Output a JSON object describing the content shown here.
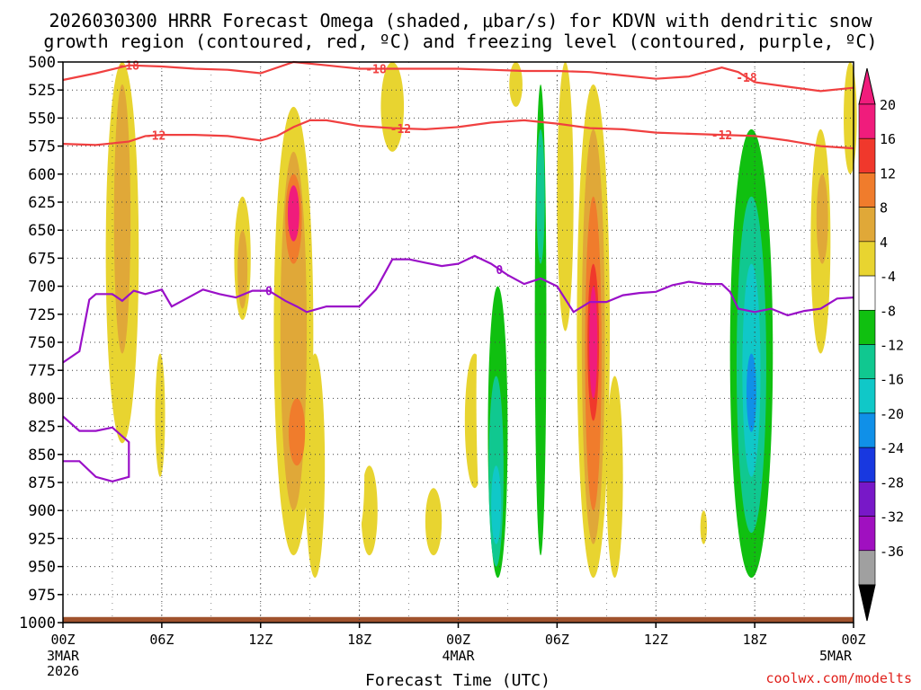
{
  "chart_data": {
    "type": "time-height contour",
    "title_line1": "2026030300 HRRR Forecast Omega (shaded, μbar/s) for KDVN with dendritic snow",
    "title_line2": "growth region (contoured, red, ºC) and freezing level (contoured, purple, ºC)",
    "xlabel": "Forecast Time (UTC)",
    "credit": "coolwx.com/modelts",
    "x_range_hours": [
      0,
      48
    ],
    "x_ticks": [
      {
        "hour": 0,
        "label": "00Z",
        "sub1": "3MAR",
        "sub2": "2026"
      },
      {
        "hour": 6,
        "label": "06Z"
      },
      {
        "hour": 12,
        "label": "12Z"
      },
      {
        "hour": 18,
        "label": "18Z"
      },
      {
        "hour": 24,
        "label": "00Z",
        "sub1": "4MAR"
      },
      {
        "hour": 30,
        "label": "06Z"
      },
      {
        "hour": 36,
        "label": "12Z"
      },
      {
        "hour": 42,
        "label": "18Z"
      },
      {
        "hour": 48,
        "label": "00Z",
        "sub1": "5MAR"
      }
    ],
    "y_ticks_hpa": [
      500,
      525,
      550,
      575,
      600,
      625,
      650,
      675,
      700,
      725,
      750,
      775,
      800,
      825,
      850,
      875,
      900,
      925,
      950,
      975,
      1000
    ],
    "y_range_hpa": [
      500,
      1000
    ],
    "colorbar": {
      "labels": [
        "20",
        "16",
        "12",
        "8",
        "4",
        "-4",
        "-8",
        "-12",
        "-16",
        "-20",
        "-24",
        "-28",
        "-32",
        "-36"
      ],
      "bins": [
        {
          "label": "20",
          "color": "#f01c7c"
        },
        {
          "label": "16",
          "color": "#f0382c"
        },
        {
          "label": "12",
          "color": "#f07c2c"
        },
        {
          "label": "8",
          "color": "#e0a838"
        },
        {
          "label": "4",
          "color": "#e8d430"
        },
        {
          "label": "-4",
          "color": "#ffffff"
        },
        {
          "label": "-8",
          "color": "#10c010"
        },
        {
          "label": "-12",
          "color": "#10c890"
        },
        {
          "label": "-16",
          "color": "#10c8c8"
        },
        {
          "label": "-20",
          "color": "#1090e8"
        },
        {
          "label": "-24",
          "color": "#1838e0"
        },
        {
          "label": "-28",
          "color": "#7818c8"
        },
        {
          "label": "-32",
          "color": "#a010c0"
        },
        {
          "label": "-36",
          "color": "#a0a0a0"
        }
      ],
      "top_arrow_color": "#f01c7c",
      "bottom_arrow_color": "#000000"
    },
    "contours": [
      {
        "name": "minus18",
        "label": "-18",
        "color": "#f04040",
        "points": [
          [
            0,
            516
          ],
          [
            2,
            510
          ],
          [
            4,
            503
          ],
          [
            6,
            504
          ],
          [
            8,
            506
          ],
          [
            10,
            507
          ],
          [
            12,
            510
          ],
          [
            14,
            500
          ],
          [
            16,
            503
          ],
          [
            18,
            506
          ],
          [
            20,
            506
          ],
          [
            22,
            506
          ],
          [
            24,
            506
          ],
          [
            26,
            507
          ],
          [
            28,
            508
          ],
          [
            30,
            508
          ],
          [
            32,
            509
          ],
          [
            34,
            512
          ],
          [
            36,
            515
          ],
          [
            38,
            513
          ],
          [
            40,
            505
          ],
          [
            41,
            509
          ],
          [
            42,
            518
          ],
          [
            44,
            522
          ],
          [
            46,
            526
          ],
          [
            48,
            523
          ]
        ],
        "label_hours": [
          4,
          19,
          41.5
        ]
      },
      {
        "name": "minus12",
        "label": "-12",
        "color": "#f04040",
        "points": [
          [
            0,
            573
          ],
          [
            2,
            574
          ],
          [
            4,
            571
          ],
          [
            5,
            566
          ],
          [
            6,
            565
          ],
          [
            8,
            565
          ],
          [
            10,
            566
          ],
          [
            12,
            570
          ],
          [
            13,
            566
          ],
          [
            14,
            558
          ],
          [
            15,
            552
          ],
          [
            16,
            552
          ],
          [
            18,
            557
          ],
          [
            20,
            559
          ],
          [
            22,
            560
          ],
          [
            24,
            558
          ],
          [
            26,
            554
          ],
          [
            28,
            552
          ],
          [
            30,
            555
          ],
          [
            32,
            559
          ],
          [
            34,
            560
          ],
          [
            36,
            563
          ],
          [
            38,
            564
          ],
          [
            40,
            565
          ],
          [
            42,
            566
          ],
          [
            44,
            570
          ],
          [
            46,
            575
          ],
          [
            48,
            577
          ]
        ],
        "label_hours": [
          5.6,
          20.5,
          40
        ]
      },
      {
        "name": "freezing-level",
        "label": "0",
        "color": "#9a10c8",
        "points": [
          [
            0,
            768
          ],
          [
            1,
            758
          ],
          [
            1.6,
            712
          ],
          [
            2,
            707
          ],
          [
            3,
            707
          ],
          [
            3.6,
            713
          ],
          [
            4.3,
            704
          ],
          [
            5,
            707
          ],
          [
            6,
            703
          ],
          [
            6.6,
            718
          ],
          [
            7.5,
            711
          ],
          [
            8.5,
            703
          ],
          [
            9.5,
            707
          ],
          [
            10.5,
            710
          ],
          [
            11.5,
            704
          ],
          [
            12.5,
            704
          ],
          [
            13.5,
            713
          ],
          [
            14.2,
            718
          ],
          [
            14.8,
            723
          ],
          [
            16,
            718
          ],
          [
            18,
            718
          ],
          [
            19,
            703
          ],
          [
            20,
            676
          ],
          [
            21,
            676
          ],
          [
            22,
            679
          ],
          [
            23,
            682
          ],
          [
            24,
            680
          ],
          [
            25,
            673
          ],
          [
            26,
            680
          ],
          [
            27,
            690
          ],
          [
            28,
            698
          ],
          [
            29,
            693
          ],
          [
            30,
            700
          ],
          [
            31,
            723
          ],
          [
            32,
            714
          ],
          [
            33,
            714
          ],
          [
            34,
            708
          ],
          [
            35,
            706
          ],
          [
            36,
            705
          ],
          [
            37,
            699
          ],
          [
            38,
            696
          ],
          [
            39,
            698
          ],
          [
            40,
            698
          ],
          [
            40.5,
            705
          ],
          [
            41,
            720
          ],
          [
            42,
            723
          ],
          [
            43,
            720
          ],
          [
            44,
            726
          ],
          [
            45,
            722
          ],
          [
            46,
            720
          ],
          [
            47,
            711
          ],
          [
            48,
            710
          ]
        ],
        "label_hours": [
          12.5,
          26.5
        ]
      }
    ],
    "contour_extra": [
      {
        "name": "low-freezing-segment",
        "points": [
          [
            0,
            816
          ],
          [
            1,
            829
          ],
          [
            2,
            829
          ],
          [
            3,
            826
          ],
          [
            4,
            839
          ],
          [
            4,
            870
          ],
          [
            3,
            874
          ],
          [
            2,
            870
          ],
          [
            1,
            856
          ],
          [
            0,
            856
          ]
        ]
      }
    ],
    "ground_hpa": 995
  }
}
